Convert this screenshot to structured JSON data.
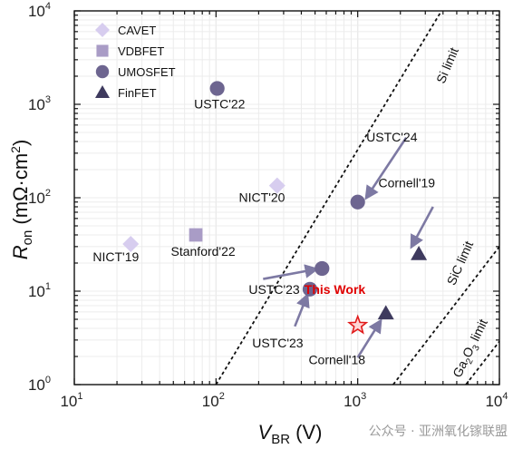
{
  "chart_data": {
    "type": "scatter",
    "x_scale": "log",
    "y_scale": "log",
    "xlim": [
      10,
      10000
    ],
    "ylim": [
      1,
      10000
    ],
    "grid": true,
    "legend_placement": "top-left",
    "xlabel": {
      "main": "V",
      "sub": "BR",
      "rest": " (V)"
    },
    "ylabel": {
      "main": "R",
      "sub": "on",
      "rest": " (mΩ·cm",
      "sup": "2",
      "end": ")"
    },
    "x_ticks": [
      {
        "base": "10",
        "exp": "1"
      },
      {
        "base": "10",
        "exp": "2"
      },
      {
        "base": "10",
        "exp": "3"
      },
      {
        "base": "10",
        "exp": "4"
      }
    ],
    "y_ticks": [
      {
        "base": "10",
        "exp": "0"
      },
      {
        "base": "10",
        "exp": "1"
      },
      {
        "base": "10",
        "exp": "2"
      },
      {
        "base": "10",
        "exp": "3"
      },
      {
        "base": "10",
        "exp": "4"
      }
    ],
    "colors": {
      "cavet": "#d7cdef",
      "vdbfet": "#a99cc6",
      "umosfet": "#6d6590",
      "finfet": "#3e3a5e",
      "this_work": "#e11b1b",
      "arrow": "#7d79a3"
    },
    "series": [
      {
        "name": "CAVET",
        "marker": "diamond",
        "points": [
          {
            "x": 25,
            "y": 32
          },
          {
            "x": 270,
            "y": 135
          }
        ]
      },
      {
        "name": "VDBFET",
        "marker": "square",
        "points": [
          {
            "x": 72,
            "y": 40
          }
        ]
      },
      {
        "name": "UMOSFET",
        "marker": "circle",
        "points": [
          {
            "x": 102,
            "y": 1480
          },
          {
            "x": 1000,
            "y": 90
          },
          {
            "x": 560,
            "y": 17.5
          },
          {
            "x": 460,
            "y": 10.5
          }
        ]
      },
      {
        "name": "FinFET",
        "marker": "triangle",
        "points": [
          {
            "x": 2700,
            "y": 25
          },
          {
            "x": 1580,
            "y": 5.8
          }
        ]
      }
    ],
    "this_work_point": {
      "x": 1000,
      "y": 4.3
    },
    "limit_lines": [
      {
        "label": "Si limit",
        "x0": 100,
        "y0": 1,
        "x1": 3900,
        "y1": 10000
      },
      {
        "label": "SiC limit",
        "x0": 1780,
        "y0": 1,
        "x1": 10000,
        "y1": 30
      },
      {
        "label_parts": [
          "Ga",
          "2",
          "O",
          "3",
          " limit"
        ],
        "x0": 5800,
        "y0": 1,
        "x1": 10000,
        "y1": 2.9
      }
    ],
    "limit_labels": [
      "Si limit",
      "SiC limit"
    ],
    "annotations": [
      {
        "text": "USTC'22",
        "x": 70,
        "y": 900
      },
      {
        "text": "NICT'20",
        "x": 145,
        "y": 90
      },
      {
        "text": "NICT'19",
        "x": 13.5,
        "y": 21
      },
      {
        "text": "Stanford'22",
        "x": 48,
        "y": 24
      },
      {
        "text": "USTC'24",
        "x": 1150,
        "y": 400
      },
      {
        "text": "Cornell'19",
        "x": 1400,
        "y": 130
      },
      {
        "text": "USTC'23",
        "x": 170,
        "y": 9.3
      },
      {
        "text": "USTC'23",
        "x": 180,
        "y": 2.5
      },
      {
        "text": "Cornell'18",
        "x": 450,
        "y": 1.65
      }
    ],
    "this_work_label": {
      "text": "This Work",
      "x": 420,
      "y": 9.4
    },
    "arrows": [
      {
        "x0": 2200,
        "y0": 440,
        "x1": 1150,
        "y1": 100
      },
      {
        "x0": 3400,
        "y0": 80,
        "x1": 2400,
        "y1": 30
      },
      {
        "x0": 215,
        "y0": 13.5,
        "x1": 510,
        "y1": 17.2
      },
      {
        "x0": 360,
        "y0": 4.2,
        "x1": 440,
        "y1": 9.0
      },
      {
        "x0": 1000,
        "y0": 1.95,
        "x1": 1450,
        "y1": 4.8
      }
    ]
  },
  "watermark": "公众号 · 亚洲氧化镓联盟"
}
